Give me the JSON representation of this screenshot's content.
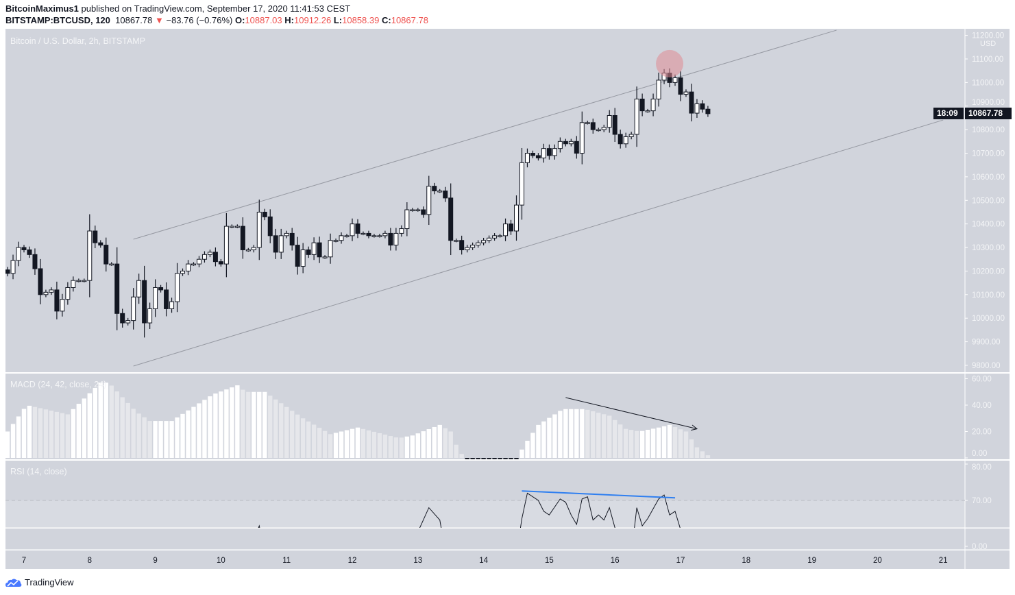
{
  "header": {
    "author": "BitcoinMaximus1",
    "published_text": "published on TradingView.com, September 17, 2020 11:41:53 CEST",
    "symbol": "BITSTAMP:BTCUSD, 120",
    "last": "10867.78",
    "change": "−83.76 (−0.76%)",
    "o_label": "O:",
    "o": "10887.03",
    "h_label": "H:",
    "h": "10912.26",
    "l_label": "L:",
    "l": "10858.39",
    "c_label": "C:",
    "c": "10867.78",
    "down_color": "#ef5350"
  },
  "footer": {
    "brand": "TradingView",
    "logo_icon": "tradingview-cloud-icon"
  },
  "chart_data": {
    "type": "candlestick",
    "title": "Bitcoin / U.S. Dollar, 2h, BITSTAMP",
    "currency": "USD",
    "interval_hours": 2,
    "start": "2020-09-06 18:00",
    "closes": [
      10190,
      10245,
      10300,
      10290,
      10270,
      10210,
      10100,
      10110,
      10120,
      10030,
      10080,
      10130,
      10160,
      10160,
      10160,
      10370,
      10320,
      10310,
      10230,
      10230,
      10020,
      9980,
      9990,
      10090,
      10160,
      9980,
      10040,
      10130,
      10120,
      10040,
      10070,
      10190,
      10200,
      10230,
      10230,
      10250,
      10270,
      10280,
      10240,
      10230,
      10390,
      10390,
      10390,
      10290,
      10290,
      10300,
      10450,
      10430,
      10350,
      10280,
      10350,
      10360,
      10310,
      10220,
      10290,
      10270,
      10320,
      10260,
      10260,
      10330,
      10330,
      10350,
      10350,
      10400,
      10360,
      10360,
      10350,
      10350,
      10350,
      10360,
      10310,
      10360,
      10380,
      10460,
      10460,
      10460,
      10440,
      10560,
      10540,
      10540,
      10510,
      10330,
      10330,
      10290,
      10300,
      10310,
      10320,
      10330,
      10340,
      10350,
      10350,
      10400,
      10370,
      10480,
      10660,
      10700,
      10690,
      10680,
      10720,
      10690,
      10720,
      10750,
      10740,
      10750,
      10700,
      10830,
      10830,
      10800,
      10800,
      10810,
      10860,
      10780,
      10740,
      10770,
      10780,
      10930,
      10880,
      10880,
      10930,
      11010,
      11040,
      11000,
      11020,
      10950,
      10960,
      10870,
      10910,
      10887.03,
      10867.78
    ],
    "last_price": "10867.78",
    "countdown": "18:09",
    "price_axis": {
      "ticks": [
        "11200.00",
        "11100.00",
        "11000.00",
        "10900.00",
        "10800.00",
        "10700.00",
        "10600.00",
        "10500.00",
        "10400.00",
        "10300.00",
        "10200.00",
        "10100.00",
        "10000.00",
        "9900.00",
        "9800.00"
      ],
      "range": [
        9780,
        11230
      ]
    },
    "time_axis": {
      "ticks": [
        "7",
        "8",
        "9",
        "10",
        "11",
        "12",
        "13",
        "14",
        "15",
        "16",
        "17",
        "18",
        "19",
        "20",
        "21"
      ],
      "month": "2020-09"
    },
    "channel_lines": [
      {
        "from": [
          "2020-09-08 16:00",
          10335
        ],
        "to": [
          "2020-09-19 09:00",
          11222
        ]
      },
      {
        "from": [
          "2020-09-08 16:00",
          9797
        ],
        "to": [
          "2020-09-21 00:00",
          10841
        ]
      }
    ],
    "highlight_circle": {
      "at": [
        "2020-09-16 20:00",
        11080
      ],
      "color": "#e08a94"
    },
    "macd": {
      "title": "MACD (24, 42, close, 24)",
      "axis_ticks": [
        "60.00",
        "40.00",
        "20.00",
        "0.00"
      ],
      "histogram_keypoints": [
        [
          "06 18:00",
          20
        ],
        [
          "07 01:00",
          40
        ],
        [
          "07 16:00",
          33
        ],
        [
          "08 04:00",
          57
        ],
        [
          "08 07:00",
          57
        ],
        [
          "08 17:00",
          35
        ],
        [
          "08 22:00",
          28
        ],
        [
          "09 06:00",
          28
        ],
        [
          "09 21:00",
          48
        ],
        [
          "10 06:00",
          55
        ],
        [
          "10 09:00",
          50
        ],
        [
          "10 16:00",
          50
        ],
        [
          "11 06:00",
          30
        ],
        [
          "11 16:00",
          18
        ],
        [
          "12 02:00",
          23
        ],
        [
          "12 17:00",
          15
        ],
        [
          "12 22:00",
          17
        ],
        [
          "13 08:00",
          25
        ],
        [
          "13 12:00",
          20
        ],
        [
          "13 15:00",
          5
        ],
        [
          "13 18:00",
          -1
        ],
        [
          "14 12:00",
          -1
        ],
        [
          "14 15:00",
          10
        ],
        [
          "14 20:00",
          25
        ],
        [
          "15 05:00",
          37
        ],
        [
          "15 13:00",
          37
        ],
        [
          "15 22:00",
          32
        ],
        [
          "16 04:00",
          22
        ],
        [
          "16 09:00",
          20
        ],
        [
          "16 16:00",
          23
        ],
        [
          "16 20:00",
          25
        ],
        [
          "17 02:00",
          20
        ],
        [
          "17 06:00",
          8
        ],
        [
          "17 10:00",
          2
        ]
      ],
      "rising_color": "#ffffff",
      "falling_color": "#e6e7eb",
      "negative_color": "#131722",
      "arrow": {
        "from": [
          "15 06:00",
          45.7
        ],
        "to": [
          "17 06:00",
          22
        ],
        "color": "#131722"
      }
    },
    "rsi": {
      "title": "RSI (14, close)",
      "axis_ticks": [
        "80.00",
        "70.00",
        "0.00"
      ],
      "overbought": 70,
      "points": [
        [
          "10 10:00",
          55
        ],
        [
          "10 14:00",
          63
        ],
        [
          "10 16:00",
          55
        ],
        [
          "12 18:00",
          55
        ],
        [
          "12 22:00",
          58
        ],
        [
          "13 04:00",
          68
        ],
        [
          "13 08:00",
          64.6
        ],
        [
          "13 10:00",
          56
        ],
        [
          "14 12:00",
          55
        ],
        [
          "14 14:00",
          65
        ],
        [
          "14 16:00",
          72
        ],
        [
          "14 20:00",
          70
        ],
        [
          "14 22:00",
          67
        ],
        [
          "15 00:00",
          66
        ],
        [
          "15 04:00",
          70.4
        ],
        [
          "15 06:00",
          69.5
        ],
        [
          "15 08:00",
          66
        ],
        [
          "15 10:00",
          63.4
        ],
        [
          "15 12:00",
          70.4
        ],
        [
          "15 14:00",
          71
        ],
        [
          "15 16:00",
          64.6
        ],
        [
          "15 18:00",
          66
        ],
        [
          "15 20:00",
          64.6
        ],
        [
          "15 22:00",
          68
        ],
        [
          "16 00:00",
          62.5
        ],
        [
          "16 02:00",
          55
        ],
        [
          "16 06:00",
          55
        ],
        [
          "16 08:00",
          68
        ],
        [
          "16 10:00",
          63
        ],
        [
          "16 12:00",
          65
        ],
        [
          "16 16:00",
          70.4
        ],
        [
          "16 18:00",
          71.5
        ],
        [
          "16 20:00",
          66
        ],
        [
          "16 22:00",
          67
        ],
        [
          "17 00:00",
          62
        ],
        [
          "17 02:00",
          55
        ]
      ],
      "trendline": {
        "from": [
          "14 14:00",
          72.6
        ],
        "to": [
          "16 22:00",
          70.7
        ],
        "color": "#2f7ff0"
      }
    }
  }
}
